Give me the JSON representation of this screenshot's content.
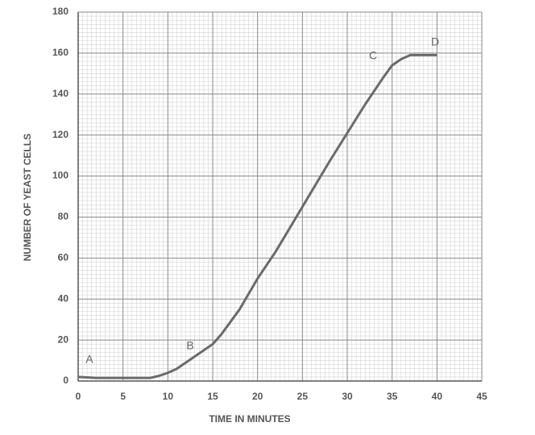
{
  "chart_data": {
    "type": "line",
    "x_label": "TIME IN MINUTES",
    "y_label": "NUMBER OF YEAST CELLS",
    "x": [
      0,
      2,
      4,
      6,
      8,
      9,
      10,
      11,
      12,
      13,
      14,
      15,
      16,
      18,
      20,
      22,
      25,
      28,
      30,
      32,
      34,
      35,
      36,
      37,
      38,
      40
    ],
    "series": [
      {
        "name": "Yeast cells",
        "color": "#6a6a6a",
        "values": [
          2,
          1.5,
          1.5,
          1.5,
          1.5,
          2.5,
          4,
          6,
          9,
          12,
          15,
          18,
          23,
          35,
          50,
          63,
          85,
          107,
          121,
          135,
          148,
          154,
          157,
          159,
          159,
          159
        ]
      }
    ],
    "annotations": [
      "A",
      "B",
      "C",
      "D"
    ],
    "xlim": [
      0,
      45
    ],
    "xticks": [
      0,
      5,
      10,
      15,
      20,
      25,
      30,
      35,
      40,
      45
    ],
    "ylim": [
      0,
      180
    ],
    "yticks": [
      0,
      20,
      40,
      60,
      80,
      100,
      120,
      140,
      160,
      180
    ],
    "grid": true
  }
}
